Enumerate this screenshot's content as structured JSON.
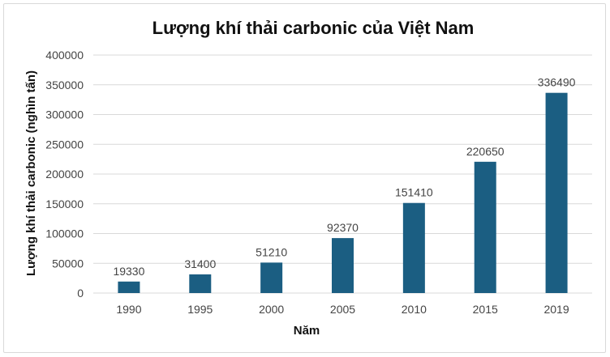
{
  "chart_data": {
    "type": "bar",
    "title": "Lượng khí thải carbonic của Việt Nam",
    "xlabel": "Năm",
    "ylabel": "Lượng khí thải carbonic (nghìn tấn)",
    "categories": [
      "1990",
      "1995",
      "2000",
      "2005",
      "2010",
      "2015",
      "2019"
    ],
    "values": [
      19330,
      31400,
      51210,
      92370,
      151410,
      220650,
      336490
    ],
    "ylim": [
      0,
      400000
    ],
    "yticks": [
      0,
      50000,
      100000,
      150000,
      200000,
      250000,
      300000,
      350000,
      400000
    ],
    "data_labels": true,
    "grid": true,
    "legend": "none",
    "colors": {
      "bar": "#1b5e82"
    }
  }
}
